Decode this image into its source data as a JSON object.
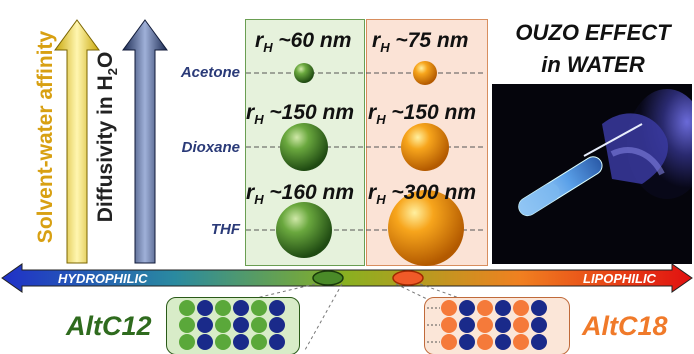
{
  "axes": {
    "left_label": "Solvent-water affinity",
    "middle_label_prefix": "Diffusivity in H",
    "middle_label_sub": "2",
    "middle_label_suffix": "O"
  },
  "solvents": [
    "Acetone",
    "Dioxane",
    "THF"
  ],
  "columns": {
    "altc12": {
      "color": "#5a9a3a",
      "sizes": [
        {
          "prefix": "r",
          "sub": "H",
          "value": " ~60 nm"
        },
        {
          "prefix": "r",
          "sub": "H",
          "value": " ~150 nm"
        },
        {
          "prefix": "r",
          "sub": "H",
          "value": " ~160 nm"
        }
      ]
    },
    "altc18": {
      "color": "#f5a020",
      "sizes": [
        {
          "prefix": "r",
          "sub": "H",
          "value": " ~75 nm"
        },
        {
          "prefix": "r",
          "sub": "H",
          "value": " ~150 nm"
        },
        {
          "prefix": "r",
          "sub": "H",
          "value": " ~300 nm"
        }
      ]
    }
  },
  "ouzo": {
    "line1": "OUZO EFFECT",
    "line2": "in WATER"
  },
  "bar": {
    "left": "HYDROPHILIC",
    "right": "LIPOPHILIC"
  },
  "polymers": {
    "left": "AltC12",
    "right": "AltC18",
    "left_color": "#2f6b1e",
    "right_color": "#f07a2a"
  },
  "icons": [
    "test-tube-photo"
  ]
}
